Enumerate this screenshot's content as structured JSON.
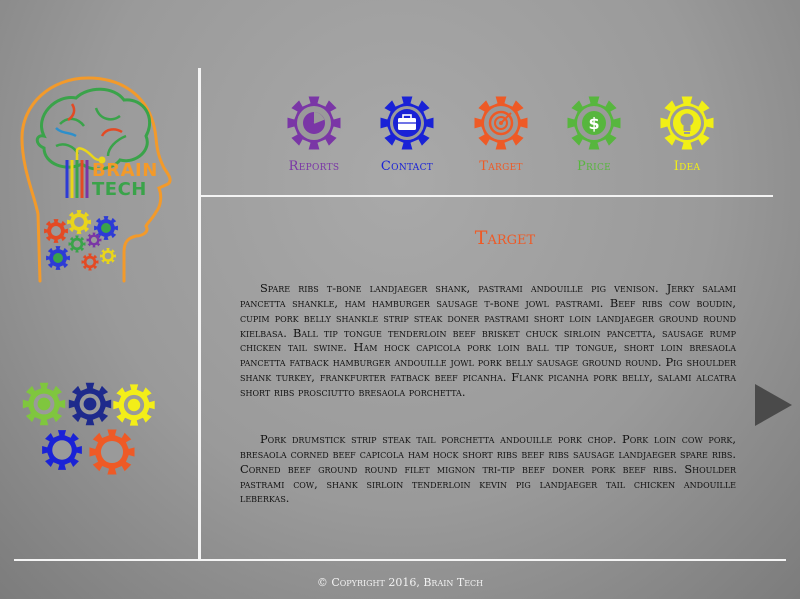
{
  "brand": {
    "line1": "BRAIN",
    "line2": "TECH"
  },
  "nav": [
    {
      "label": "Reports",
      "color": "#7a36a6",
      "icon": "pie-chart-icon"
    },
    {
      "label": "Contact",
      "color": "#1a22d6",
      "icon": "briefcase-icon"
    },
    {
      "label": "Target",
      "color": "#ee5a26",
      "icon": "target-icon"
    },
    {
      "label": "Price",
      "color": "#57b63e",
      "icon": "dollar-icon"
    },
    {
      "label": "Idea",
      "color": "#f1ef16",
      "icon": "lightbulb-icon"
    }
  ],
  "content": {
    "heading": "Target",
    "heading_color": "#ee5a26",
    "paragraphs": [
      "Spare ribs t-bone landjaeger shank, pastrami andouille pig venison. Jerky salami pancetta shankle, ham hamburger sausage t-bone jowl pastrami. Beef ribs cow boudin, cupim pork belly shankle strip steak doner pastrami short loin landjaeger ground round kielbasa. Ball tip tongue tenderloin beef brisket chuck sirloin pancetta, sausage rump chicken tail swine. Ham hock capicola pork loin ball tip tongue, short loin bresaola pancetta fatback hamburger andouille jowl pork belly sausage ground round. Pig shoulder shank turkey, frankfurter fatback beef picanha. Flank picanha pork belly, salami alcatra short ribs prosciutto bresaola porchetta.",
      "Pork drumstick strip steak tail porchetta andouille pork chop. Pork loin cow pork, bresaola corned beef capicola ham hock short ribs beef ribs sausage landjaeger spare ribs. Corned beef ground round filet mignon tri-tip beef doner pork beef ribs. Shoulder pastrami cow, shank sirloin tenderloin kevin pig landjaeger tail chicken andouille leberkas."
    ]
  },
  "footer": "© Copyright 2016, Brain Tech",
  "colors": {
    "line": "#f4f4f4",
    "brand_orange": "#f39a2a",
    "brand_green": "#3aa34a",
    "next_arrow": "#4a4a4a"
  }
}
